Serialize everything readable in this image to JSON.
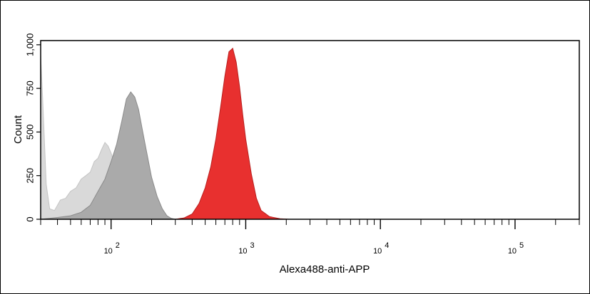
{
  "chart_data": {
    "type": "area",
    "title": "",
    "xlabel": "Alexa488-anti-APP",
    "ylabel": "Count",
    "x_scale": "log",
    "xlim": [
      30,
      300000
    ],
    "ylim": [
      0,
      1024
    ],
    "y_ticks": [
      0,
      250,
      500,
      750,
      1000
    ],
    "y_tick_labels": [
      "0",
      "250",
      "500",
      "750",
      "1,000"
    ],
    "x_ticks": [
      {
        "value": 100,
        "base": "10",
        "exp": "2"
      },
      {
        "value": 1000,
        "base": "10",
        "exp": "3"
      },
      {
        "value": 10000,
        "base": "10",
        "exp": "4"
      },
      {
        "value": 100000,
        "base": "10",
        "exp": "5"
      }
    ],
    "grid": false,
    "series": [
      {
        "color": "#d9d9d9",
        "points": [
          [
            30,
            940
          ],
          [
            31,
            700
          ],
          [
            33,
            200
          ],
          [
            35,
            60
          ],
          [
            38,
            50
          ],
          [
            42,
            110
          ],
          [
            46,
            120
          ],
          [
            50,
            160
          ],
          [
            55,
            180
          ],
          [
            60,
            230
          ],
          [
            65,
            250
          ],
          [
            70,
            270
          ],
          [
            75,
            330
          ],
          [
            80,
            350
          ],
          [
            85,
            400
          ],
          [
            90,
            440
          ],
          [
            95,
            420
          ],
          [
            100,
            380
          ],
          [
            105,
            330
          ],
          [
            110,
            280
          ],
          [
            115,
            240
          ],
          [
            120,
            190
          ],
          [
            130,
            130
          ],
          [
            140,
            80
          ],
          [
            150,
            40
          ],
          [
            160,
            20
          ],
          [
            170,
            8
          ],
          [
            180,
            0
          ]
        ]
      },
      {
        "color": "#aaaaaa",
        "points": [
          [
            30,
            0
          ],
          [
            40,
            10
          ],
          [
            50,
            20
          ],
          [
            60,
            40
          ],
          [
            70,
            80
          ],
          [
            80,
            160
          ],
          [
            90,
            230
          ],
          [
            100,
            330
          ],
          [
            110,
            430
          ],
          [
            120,
            560
          ],
          [
            130,
            690
          ],
          [
            140,
            730
          ],
          [
            150,
            700
          ],
          [
            160,
            630
          ],
          [
            170,
            520
          ],
          [
            180,
            420
          ],
          [
            200,
            240
          ],
          [
            220,
            130
          ],
          [
            240,
            60
          ],
          [
            260,
            20
          ],
          [
            280,
            5
          ],
          [
            300,
            0
          ]
        ]
      },
      {
        "color": "#e8302f",
        "points": [
          [
            300,
            0
          ],
          [
            350,
            8
          ],
          [
            400,
            30
          ],
          [
            450,
            90
          ],
          [
            500,
            180
          ],
          [
            550,
            300
          ],
          [
            600,
            460
          ],
          [
            650,
            640
          ],
          [
            700,
            820
          ],
          [
            750,
            960
          ],
          [
            800,
            980
          ],
          [
            850,
            900
          ],
          [
            900,
            760
          ],
          [
            950,
            600
          ],
          [
            1000,
            460
          ],
          [
            1100,
            260
          ],
          [
            1200,
            120
          ],
          [
            1300,
            50
          ],
          [
            1500,
            15
          ],
          [
            1800,
            3
          ],
          [
            2100,
            0
          ]
        ]
      }
    ]
  }
}
